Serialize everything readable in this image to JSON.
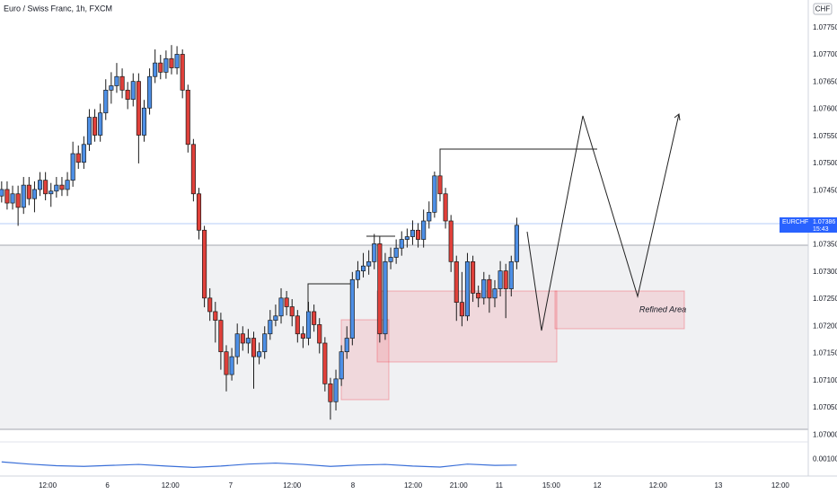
{
  "chart_data": {
    "type": "candlestick",
    "title": "Euro / Swiss Franc, 1h, FXCM",
    "symbol": "EURCHF",
    "countdown": "15:43",
    "currency": "CHF",
    "annotations": [
      "Refined Area"
    ],
    "up_color": "#4d8fe6",
    "down_color": "#e0403a",
    "grid": false,
    "open": [
      1.0744,
      1.07452,
      1.07427,
      1.07444,
      1.07419,
      1.0746,
      1.07435,
      1.07452,
      1.07469,
      1.07444,
      1.07449,
      1.0746,
      1.07452,
      1.07469,
      1.07518,
      1.07502,
      1.07535,
      1.07585,
      1.07552,
      1.07593,
      1.07635,
      1.07643,
      1.0766,
      1.07635,
      1.07618,
      1.07651,
      1.07552,
      1.07602,
      1.0766,
      1.07685,
      1.07668,
      1.07693,
      1.07676,
      1.07701,
      1.07635,
      1.07535,
      1.07444,
      1.07377,
      1.07252,
      1.07227,
      1.07211,
      1.07153,
      1.07111,
      1.07144,
      1.07186,
      1.07169,
      1.07178,
      1.07144,
      1.07153,
      1.07186,
      1.07211,
      1.07219,
      1.07252,
      1.07236,
      1.07219,
      1.07186,
      1.07178,
      1.07227,
      1.07203,
      1.07169,
      1.07094,
      1.07061,
      1.07103,
      1.07153,
      1.07178,
      1.07286,
      1.07302,
      1.07311,
      1.07319,
      1.07352,
      1.07186,
      1.07319,
      1.07327,
      1.07344,
      1.0736,
      1.07365,
      1.07377,
      1.0736,
      1.07394,
      1.0741,
      1.07477,
      1.07444,
      1.07394,
      1.07319,
      1.07244,
      1.07219,
      1.07319,
      1.07261,
      1.07252,
      1.07286,
      1.07252,
      1.07269,
      1.07302,
      1.07269,
      1.07319
    ],
    "high": [
      1.07467,
      1.07467,
      1.07459,
      1.07459,
      1.07475,
      1.07475,
      1.07467,
      1.07484,
      1.07484,
      1.07464,
      1.07475,
      1.07475,
      1.07484,
      1.0754,
      1.07533,
      1.0755,
      1.076,
      1.076,
      1.0761,
      1.07655,
      1.07668,
      1.07685,
      1.07675,
      1.0765,
      1.07666,
      1.07666,
      1.07617,
      1.07675,
      1.0771,
      1.077,
      1.07708,
      1.07718,
      1.07716,
      1.0771,
      1.07645,
      1.07545,
      1.07455,
      1.07385,
      1.0727,
      1.07245,
      1.07225,
      1.07165,
      1.0716,
      1.07205,
      1.072,
      1.07195,
      1.0719,
      1.0717,
      1.072,
      1.0723,
      1.0724,
      1.0727,
      1.07265,
      1.0725,
      1.0723,
      1.072,
      1.07245,
      1.0724,
      1.07215,
      1.0718,
      1.07105,
      1.0712,
      1.07165,
      1.072,
      1.073,
      1.0732,
      1.07335,
      1.0734,
      1.0737,
      1.07365,
      1.07335,
      1.07345,
      1.0736,
      1.07375,
      1.0738,
      1.07395,
      1.0739,
      1.07415,
      1.0743,
      1.07485,
      1.07485,
      1.07455,
      1.07405,
      1.0733,
      1.073,
      1.07335,
      1.0733,
      1.07275,
      1.073,
      1.07295,
      1.07285,
      1.0732,
      1.07315,
      1.0733,
      1.074
    ],
    "low": [
      1.07428,
      1.07415,
      1.07415,
      1.07385,
      1.07407,
      1.07423,
      1.0741,
      1.0744,
      1.07432,
      1.0742,
      1.07437,
      1.0744,
      1.0744,
      1.07457,
      1.0749,
      1.0749,
      1.07523,
      1.0754,
      1.0754,
      1.0758,
      1.0761,
      1.0763,
      1.0762,
      1.076,
      1.07605,
      1.075,
      1.0754,
      1.0759,
      1.07648,
      1.07655,
      1.07656,
      1.07664,
      1.07664,
      1.0762,
      1.0752,
      1.0743,
      1.0736,
      1.07235,
      1.0721,
      1.0717,
      1.0712,
      1.0708,
      1.071,
      1.0713,
      1.07155,
      1.0715,
      1.07085,
      1.0713,
      1.0714,
      1.07175,
      1.072,
      1.07205,
      1.0722,
      1.072,
      1.0717,
      1.0716,
      1.07165,
      1.0719,
      1.0715,
      1.0708,
      1.07028,
      1.07045,
      1.0709,
      1.0714,
      1.07165,
      1.0727,
      1.0729,
      1.07295,
      1.07305,
      1.0717,
      1.07175,
      1.07305,
      1.07315,
      1.0733,
      1.07345,
      1.0735,
      1.07345,
      1.07345,
      1.0738,
      1.074,
      1.0743,
      1.0738,
      1.073,
      1.0721,
      1.072,
      1.0721,
      1.07245,
      1.07235,
      1.0724,
      1.07225,
      1.07235,
      1.07255,
      1.07215,
      1.07255,
      1.07305
    ],
    "close": [
      1.07452,
      1.07427,
      1.07444,
      1.07419,
      1.0746,
      1.07435,
      1.07452,
      1.07469,
      1.07444,
      1.07449,
      1.0746,
      1.07452,
      1.07469,
      1.07518,
      1.07502,
      1.07535,
      1.07585,
      1.07552,
      1.07593,
      1.07635,
      1.07643,
      1.0766,
      1.07635,
      1.07618,
      1.07651,
      1.07552,
      1.07602,
      1.0766,
      1.07685,
      1.07668,
      1.07693,
      1.07676,
      1.07701,
      1.07635,
      1.07535,
      1.07444,
      1.07377,
      1.07252,
      1.07227,
      1.07211,
      1.07153,
      1.07111,
      1.07144,
      1.07186,
      1.07169,
      1.07178,
      1.07144,
      1.07153,
      1.07186,
      1.07211,
      1.07219,
      1.07252,
      1.07236,
      1.07219,
      1.07186,
      1.07178,
      1.07227,
      1.07203,
      1.07169,
      1.07094,
      1.07061,
      1.07103,
      1.07153,
      1.07178,
      1.07286,
      1.07302,
      1.07311,
      1.07319,
      1.07352,
      1.07186,
      1.07319,
      1.07327,
      1.07344,
      1.0736,
      1.07365,
      1.07377,
      1.0736,
      1.07394,
      1.0741,
      1.07477,
      1.07444,
      1.07394,
      1.07319,
      1.07244,
      1.07219,
      1.07319,
      1.07261,
      1.07252,
      1.07286,
      1.07252,
      1.07269,
      1.07302,
      1.07269,
      1.07319,
      1.07386
    ],
    "xlim": [
      -0.3,
      147.2
    ],
    "xticks": [
      {
        "value": 8.4,
        "label": "12:00"
      },
      {
        "value": 19.3,
        "label": "6"
      },
      {
        "value": 30.8,
        "label": "12:00"
      },
      {
        "value": 41.8,
        "label": "7"
      },
      {
        "value": 53,
        "label": "12:00"
      },
      {
        "value": 64.1,
        "label": "8"
      },
      {
        "value": 75.1,
        "label": "12:00"
      },
      {
        "value": 83.4,
        "label": "21:00"
      },
      {
        "value": 90.8,
        "label": "11"
      },
      {
        "value": 100.3,
        "label": "15:00"
      },
      {
        "value": 108.7,
        "label": "12"
      },
      {
        "value": 119.8,
        "label": "12:00"
      },
      {
        "value": 130.8,
        "label": "13"
      },
      {
        "value": 142.1,
        "label": "12:00"
      }
    ],
    "ylim": [
      1.06987,
      1.07801
    ],
    "yticks": [
      {
        "value": 1.07,
        "label": "1.07000"
      },
      {
        "value": 1.0705,
        "label": "1.07050"
      },
      {
        "value": 1.071,
        "label": "1.07100"
      },
      {
        "value": 1.0715,
        "label": "1.07150"
      },
      {
        "value": 1.072,
        "label": "1.07200"
      },
      {
        "value": 1.0725,
        "label": "1.07250"
      },
      {
        "value": 1.073,
        "label": "1.07300"
      },
      {
        "value": 1.0735,
        "label": "1.07350"
      },
      {
        "value": 1.074,
        "label": "1.07400"
      },
      {
        "value": 1.0745,
        "label": "1.07450"
      },
      {
        "value": 1.075,
        "label": "1.07500"
      },
      {
        "value": 1.0755,
        "label": "1.07550"
      },
      {
        "value": 1.076,
        "label": "1.07600"
      },
      {
        "value": 1.0765,
        "label": "1.07650"
      },
      {
        "value": 1.077,
        "label": "1.07700"
      },
      {
        "value": 1.0775,
        "label": "1.07750"
      },
      {
        "value": 1.078,
        "label": "1.07800"
      }
    ],
    "oscillator": {
      "color": "#3a6fd8",
      "ylim": [
        0,
        0.002
      ],
      "yticks": [
        {
          "value": 0.001,
          "label": "0.00100"
        }
      ],
      "x": [
        0,
        5,
        10,
        15,
        20,
        25,
        30,
        35,
        40,
        45,
        50,
        55,
        60,
        65,
        70,
        75,
        80,
        85,
        90,
        94
      ],
      "values": [
        0.00085,
        0.00072,
        0.00062,
        0.00058,
        0.00064,
        0.0007,
        0.0006,
        0.00052,
        0.0006,
        0.00072,
        0.00078,
        0.0007,
        0.00058,
        0.00066,
        0.0007,
        0.0006,
        0.00054,
        0.00072,
        0.00064,
        0.00066
      ]
    }
  }
}
